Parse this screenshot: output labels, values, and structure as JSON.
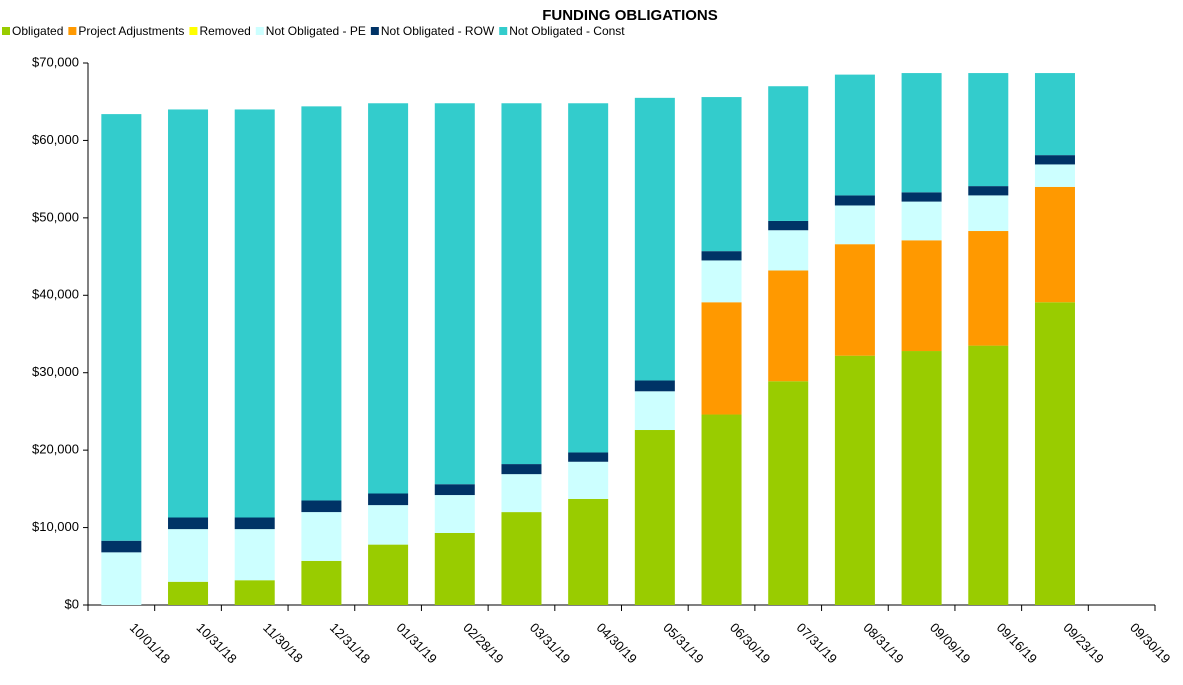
{
  "chart_data": {
    "type": "stacked_bar",
    "title": "FUNDING OBLIGATIONS",
    "categories": [
      "10/01/18",
      "10/31/18",
      "11/30/18",
      "12/31/18",
      "01/31/19",
      "02/28/19",
      "03/31/19",
      "04/30/19",
      "05/31/19",
      "06/30/19",
      "07/31/19",
      "08/31/19",
      "09/09/19",
      "09/16/19",
      "09/23/19",
      "09/30/19"
    ],
    "series": [
      {
        "name": "Obligated",
        "color": "#99cc00",
        "values": [
          0,
          3000,
          3200,
          5700,
          7800,
          9300,
          12000,
          13700,
          22600,
          24600,
          28900,
          32200,
          32800,
          33500,
          39100,
          null
        ]
      },
      {
        "name": "Project Adjustments",
        "color": "#ff9900",
        "values": [
          0,
          0,
          0,
          0,
          0,
          0,
          0,
          0,
          0,
          14500,
          14300,
          14400,
          14300,
          14800,
          14900,
          null
        ]
      },
      {
        "name": "Removed",
        "color": "#ffff00",
        "values": [
          0,
          0,
          0,
          0,
          0,
          0,
          0,
          0,
          0,
          0,
          0,
          0,
          0,
          0,
          0,
          null
        ]
      },
      {
        "name": "Not Obligated - PE",
        "color": "#ccffff",
        "values": [
          6800,
          6800,
          6600,
          6300,
          5100,
          4900,
          4900,
          4800,
          5000,
          5400,
          5200,
          5000,
          5000,
          4600,
          2900,
          null
        ]
      },
      {
        "name": "Not Obligated - ROW",
        "color": "#003366",
        "values": [
          1500,
          1500,
          1500,
          1500,
          1500,
          1400,
          1300,
          1200,
          1400,
          1200,
          1200,
          1300,
          1200,
          1200,
          1200,
          null
        ]
      },
      {
        "name": "Not Obligated - Const",
        "color": "#33cccc",
        "values": [
          55100,
          52700,
          52700,
          50900,
          50400,
          49200,
          46600,
          45100,
          36500,
          19900,
          17400,
          15600,
          15400,
          14600,
          10600,
          null
        ]
      }
    ],
    "ylim": [
      0,
      70000
    ],
    "yticks": [
      {
        "value": 0,
        "label": "$0"
      },
      {
        "value": 10000,
        "label": "$10,000"
      },
      {
        "value": 20000,
        "label": "$20,000"
      },
      {
        "value": 30000,
        "label": "$30,000"
      },
      {
        "value": 40000,
        "label": "$40,000"
      },
      {
        "value": 50000,
        "label": "$50,000"
      },
      {
        "value": 60000,
        "label": "$60,000"
      },
      {
        "value": 70000,
        "label": "$70,000"
      }
    ],
    "grid": false
  }
}
